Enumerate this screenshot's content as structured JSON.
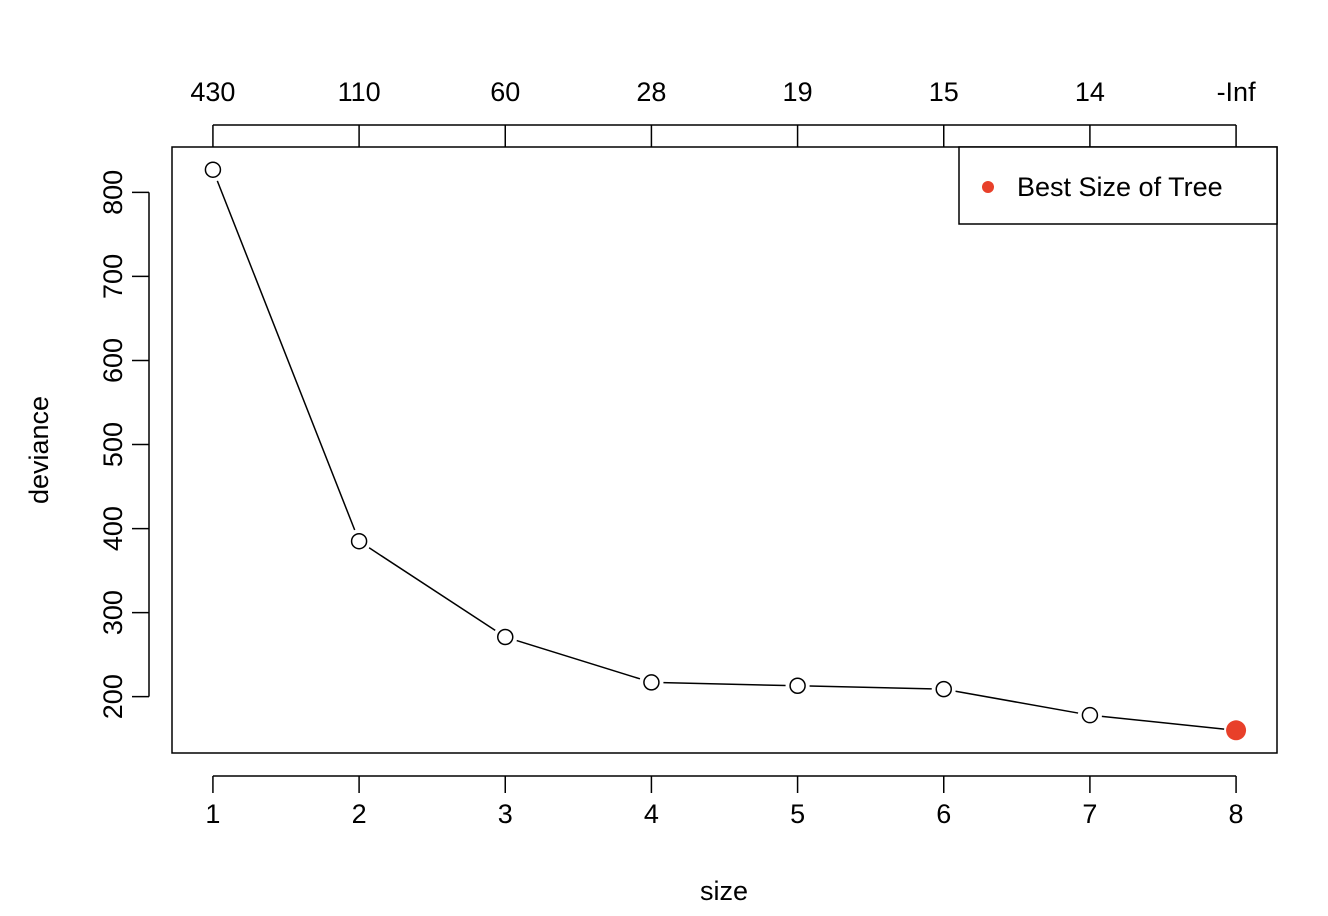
{
  "chart_data": {
    "type": "line",
    "xlabel": "size",
    "ylabel": "deviance",
    "x": [
      1,
      2,
      3,
      4,
      5,
      6,
      7,
      8
    ],
    "series": [
      {
        "values": [
          827,
          385,
          271,
          217,
          213,
          209,
          178,
          160
        ]
      }
    ],
    "top_axis_labels": [
      "430",
      "110",
      "60",
      "28",
      "19",
      "15",
      "14",
      "-Inf"
    ],
    "x_ticks": [
      "1",
      "2",
      "3",
      "4",
      "5",
      "6",
      "7",
      "8"
    ],
    "y_ticks": [
      200,
      300,
      400,
      500,
      600,
      700,
      800
    ],
    "xlim": [
      0.72,
      8.28
    ],
    "ylim": [
      133,
      854
    ],
    "best_point": {
      "x": 8,
      "y": 160,
      "color": "#e8402a"
    },
    "legend": {
      "label": "Best Size of Tree",
      "position": "top-right",
      "marker_color": "#e8402a"
    },
    "grid": false
  }
}
